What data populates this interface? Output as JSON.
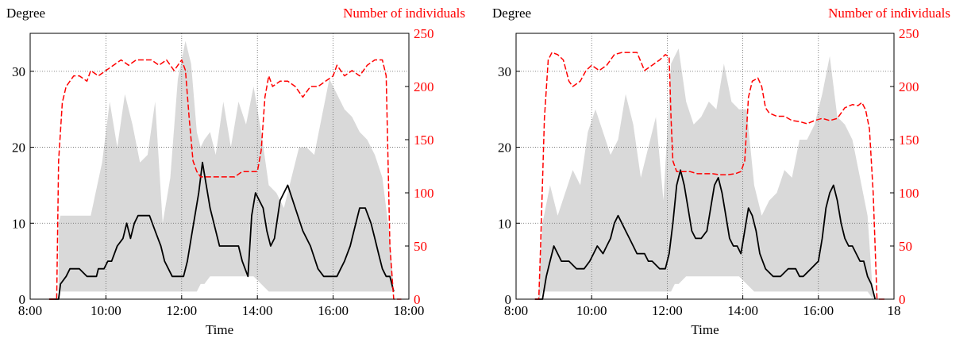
{
  "colors": {
    "band": "#d9d9d9",
    "degree_line": "#000000",
    "individuals_line": "#ff0000",
    "grid": "#666666"
  },
  "chart_data": [
    {
      "type": "line",
      "y_label": "Degree",
      "y2_label": "Number of individuals",
      "x_label": "Time",
      "x_ticks": [
        "8:00",
        "10:00",
        "12:00",
        "14:00",
        "16:00",
        "18:00"
      ],
      "y_ticks": [
        "0",
        "10",
        "20",
        "30"
      ],
      "y2_ticks": [
        "0",
        "50",
        "100",
        "150",
        "200",
        "250"
      ],
      "xlim": [
        8,
        18
      ],
      "ylim": [
        0,
        35
      ],
      "y2lim": [
        0,
        250
      ],
      "grid": true,
      "band": {
        "x": [
          8.75,
          8.8,
          9.0,
          9.3,
          9.6,
          9.9,
          10.1,
          10.3,
          10.5,
          10.7,
          10.9,
          11.1,
          11.3,
          11.5,
          11.7,
          11.9,
          12.1,
          12.25,
          12.4,
          12.5,
          12.6,
          12.75,
          12.9,
          13.1,
          13.3,
          13.5,
          13.7,
          13.9,
          14.1,
          14.3,
          14.5,
          14.7,
          14.9,
          15.1,
          15.3,
          15.5,
          15.7,
          15.9,
          16.1,
          16.3,
          16.5,
          16.7,
          16.9,
          17.1,
          17.3,
          17.5,
          17.6
        ],
        "lower": [
          1,
          1,
          1,
          1,
          1,
          1,
          1,
          1,
          1,
          1,
          1,
          1,
          1,
          1,
          1,
          1,
          1,
          1,
          1,
          2,
          2,
          3,
          3,
          3,
          3,
          3,
          3,
          3,
          2,
          1,
          1,
          1,
          1,
          1,
          1,
          1,
          1,
          1,
          1,
          1,
          1,
          1,
          1,
          1,
          1,
          1,
          1
        ],
        "upper": [
          10,
          11,
          11,
          11,
          11,
          18,
          26,
          20,
          27,
          23,
          18,
          19,
          26,
          10,
          16,
          29,
          34,
          31,
          22,
          20,
          21,
          22,
          19,
          26,
          20,
          26,
          23,
          28,
          22,
          15,
          14,
          12,
          16,
          20,
          20,
          19,
          24,
          29,
          27,
          25,
          24,
          22,
          21,
          19,
          16,
          8,
          1
        ]
      },
      "series": [
        {
          "axis": "left",
          "style": "solid",
          "x": [
            8.5,
            8.75,
            8.8,
            8.95,
            9.05,
            9.3,
            9.5,
            9.75,
            9.8,
            9.95,
            10.05,
            10.15,
            10.3,
            10.45,
            10.55,
            10.65,
            10.75,
            10.85,
            10.95,
            11.05,
            11.15,
            11.3,
            11.45,
            11.55,
            11.65,
            11.75,
            11.9,
            12.05,
            12.15,
            12.25,
            12.35,
            12.45,
            12.55,
            12.65,
            12.75,
            12.95,
            13.0,
            13.1,
            13.2,
            13.3,
            13.4,
            13.5,
            13.6,
            13.75,
            13.85,
            13.95,
            14.05,
            14.15,
            14.25,
            14.35,
            14.45,
            14.6,
            14.8,
            15.0,
            15.2,
            15.4,
            15.6,
            15.75,
            15.9,
            16.0,
            16.1,
            16.2,
            16.3,
            16.45,
            16.55,
            16.7,
            16.85,
            17.0,
            17.1,
            17.2,
            17.3,
            17.4,
            17.5,
            17.6
          ],
          "y": [
            0,
            0,
            2,
            3,
            4,
            4,
            3,
            3,
            4,
            4,
            5,
            5,
            7,
            8,
            10,
            8,
            10,
            11,
            11,
            11,
            11,
            9,
            7,
            5,
            4,
            3,
            3,
            3,
            5,
            8,
            11,
            14,
            18,
            15,
            12,
            8,
            7,
            7,
            7,
            7,
            7,
            7,
            5,
            3,
            11,
            14,
            13,
            12,
            9,
            7,
            8,
            13,
            15,
            12,
            9,
            7,
            4,
            3,
            3,
            3,
            3,
            4,
            5,
            7,
            9,
            12,
            12,
            10,
            8,
            6,
            4,
            3,
            3,
            1
          ]
        },
        {
          "axis": "right",
          "style": "dashed",
          "x": [
            8.5,
            8.7,
            8.75,
            8.85,
            8.95,
            9.05,
            9.15,
            9.3,
            9.5,
            9.6,
            9.8,
            10.0,
            10.2,
            10.4,
            10.6,
            10.8,
            11.0,
            11.2,
            11.4,
            11.6,
            11.8,
            12.0,
            12.1,
            12.2,
            12.3,
            12.4,
            12.5,
            12.6,
            12.8,
            13.0,
            13.2,
            13.4,
            13.6,
            13.8,
            14.0,
            14.1,
            14.2,
            14.3,
            14.4,
            14.6,
            14.8,
            15.0,
            15.2,
            15.4,
            15.6,
            15.8,
            16.0,
            16.1,
            16.3,
            16.5,
            16.7,
            16.9,
            17.1,
            17.3,
            17.4,
            17.5,
            17.6,
            17.8
          ],
          "y": [
            0,
            0,
            130,
            185,
            200,
            205,
            210,
            210,
            205,
            215,
            210,
            215,
            220,
            225,
            220,
            225,
            225,
            225,
            220,
            225,
            215,
            225,
            215,
            170,
            130,
            120,
            115,
            115,
            115,
            115,
            115,
            115,
            120,
            120,
            120,
            140,
            190,
            210,
            200,
            205,
            205,
            200,
            190,
            200,
            200,
            205,
            210,
            220,
            210,
            215,
            210,
            220,
            225,
            225,
            210,
            50,
            0,
            0
          ]
        }
      ]
    },
    {
      "type": "line",
      "y_label": "Degree",
      "y2_label": "Number of individuals",
      "x_label": "Time",
      "x_ticks": [
        "8:00",
        "10:00",
        "12:00",
        "14:00",
        "16:00",
        "18"
      ],
      "y_ticks": [
        "0",
        "10",
        "20",
        "30"
      ],
      "y2_ticks": [
        "0",
        "50",
        "100",
        "150",
        "200",
        "250"
      ],
      "xlim": [
        8,
        18
      ],
      "ylim": [
        0,
        35
      ],
      "y2lim": [
        0,
        250
      ],
      "grid": true,
      "band": {
        "x": [
          8.6,
          8.7,
          8.9,
          9.1,
          9.3,
          9.5,
          9.7,
          9.9,
          10.1,
          10.3,
          10.5,
          10.7,
          10.9,
          11.1,
          11.3,
          11.5,
          11.7,
          11.9,
          12.1,
          12.2,
          12.3,
          12.5,
          12.7,
          12.9,
          13.1,
          13.3,
          13.5,
          13.7,
          13.9,
          14.1,
          14.3,
          14.5,
          14.7,
          14.9,
          15.1,
          15.3,
          15.5,
          15.7,
          15.9,
          16.1,
          16.3,
          16.5,
          16.7,
          16.9,
          17.1,
          17.3,
          17.45
        ],
        "lower": [
          0,
          1,
          1,
          1,
          1,
          1,
          1,
          1,
          1,
          1,
          1,
          1,
          1,
          1,
          1,
          1,
          1,
          1,
          1,
          2,
          2,
          3,
          3,
          3,
          3,
          3,
          3,
          3,
          3,
          2,
          1,
          1,
          1,
          1,
          1,
          1,
          1,
          1,
          1,
          1,
          1,
          1,
          1,
          1,
          1,
          1,
          0
        ],
        "upper": [
          1,
          10,
          15,
          11,
          14,
          17,
          15,
          22,
          25,
          22,
          19,
          21,
          27,
          23,
          16,
          20,
          24,
          13,
          31,
          32,
          33,
          26,
          23,
          24,
          26,
          25,
          31,
          26,
          25,
          25,
          15,
          11,
          13,
          14,
          17,
          16,
          21,
          21,
          23,
          27,
          32,
          24,
          23,
          21,
          16,
          11,
          0
        ]
      },
      "series": [
        {
          "axis": "left",
          "style": "solid",
          "x": [
            8.5,
            8.7,
            8.8,
            8.9,
            9.0,
            9.1,
            9.2,
            9.4,
            9.6,
            9.8,
            9.95,
            10.05,
            10.15,
            10.3,
            10.4,
            10.5,
            10.6,
            10.7,
            10.8,
            10.9,
            11.0,
            11.2,
            11.4,
            11.5,
            11.6,
            11.8,
            11.95,
            12.05,
            12.15,
            12.25,
            12.35,
            12.45,
            12.55,
            12.65,
            12.75,
            12.9,
            13.05,
            13.15,
            13.25,
            13.35,
            13.45,
            13.55,
            13.65,
            13.75,
            13.85,
            13.95,
            14.05,
            14.15,
            14.25,
            14.35,
            14.45,
            14.6,
            14.8,
            15.0,
            15.2,
            15.4,
            15.5,
            15.6,
            15.8,
            16.0,
            16.1,
            16.2,
            16.3,
            16.4,
            16.5,
            16.6,
            16.7,
            16.8,
            16.9,
            17.0,
            17.1,
            17.2,
            17.3,
            17.4,
            17.5
          ],
          "y": [
            0,
            0,
            3,
            5,
            7,
            6,
            5,
            5,
            4,
            4,
            5,
            6,
            7,
            6,
            7,
            8,
            10,
            11,
            10,
            9,
            8,
            6,
            6,
            5,
            5,
            4,
            4,
            6,
            10,
            15,
            17,
            15,
            12,
            9,
            8,
            8,
            9,
            12,
            15,
            16,
            14,
            11,
            8,
            7,
            7,
            6,
            9,
            12,
            11,
            9,
            6,
            4,
            3,
            3,
            4,
            4,
            3,
            3,
            4,
            5,
            8,
            12,
            14,
            15,
            13,
            10,
            8,
            7,
            7,
            6,
            5,
            5,
            3,
            2,
            0
          ]
        },
        {
          "axis": "right",
          "style": "dashed",
          "x": [
            8.5,
            8.6,
            8.65,
            8.75,
            8.85,
            8.95,
            9.1,
            9.25,
            9.4,
            9.5,
            9.7,
            9.85,
            10.0,
            10.2,
            10.4,
            10.6,
            10.8,
            11.0,
            11.2,
            11.4,
            11.6,
            11.8,
            11.95,
            12.05,
            12.1,
            12.15,
            12.25,
            12.35,
            12.6,
            12.8,
            13.0,
            13.2,
            13.4,
            13.6,
            13.8,
            13.95,
            14.05,
            14.15,
            14.25,
            14.4,
            14.5,
            14.6,
            14.7,
            14.9,
            15.1,
            15.3,
            15.5,
            15.7,
            15.9,
            16.1,
            16.3,
            16.5,
            16.7,
            16.9,
            17.05,
            17.15,
            17.25,
            17.35,
            17.45,
            17.55,
            17.8
          ],
          "y": [
            0,
            0,
            50,
            170,
            225,
            232,
            230,
            225,
            205,
            200,
            205,
            215,
            220,
            215,
            220,
            230,
            232,
            232,
            232,
            215,
            220,
            225,
            230,
            228,
            170,
            130,
            120,
            120,
            120,
            118,
            118,
            118,
            117,
            117,
            118,
            120,
            130,
            190,
            205,
            208,
            200,
            180,
            175,
            172,
            172,
            168,
            167,
            165,
            168,
            170,
            168,
            170,
            180,
            183,
            182,
            185,
            178,
            160,
            100,
            0,
            0
          ]
        }
      ]
    }
  ]
}
